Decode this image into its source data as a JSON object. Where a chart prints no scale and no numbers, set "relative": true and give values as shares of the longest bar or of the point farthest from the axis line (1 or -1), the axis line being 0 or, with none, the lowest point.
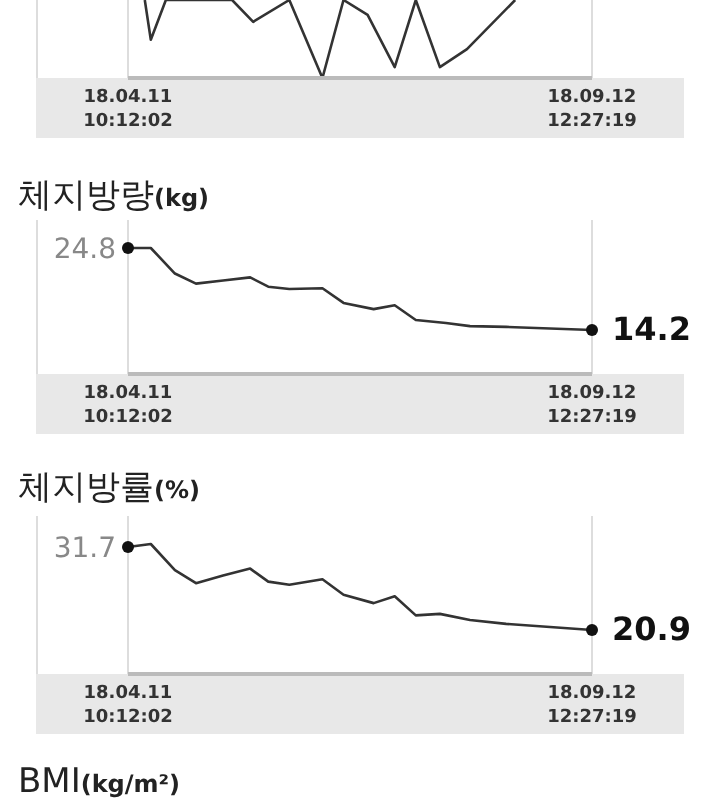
{
  "chart_data": [
    {
      "type": "line",
      "relative": true,
      "grid": "x",
      "line_style": "solid",
      "x": [
        "--04-17",
        "--04-19",
        "--04-24",
        "--05-16",
        "--05-23",
        "--06-04",
        "--06-15",
        "--06-22",
        "--06-30",
        "--07-09",
        "--07-16",
        "--07-24",
        "--08-02",
        "--08-18"
      ],
      "values": [
        1,
        0.49,
        1,
        1,
        0.72,
        1,
        0,
        1,
        0.81,
        0.14,
        1,
        0.14,
        0.37,
        1
      ],
      "xlim": [
        "--04-11T10:12",
        "--09-12T12:27"
      ],
      "xticks": [
        {
          "value": "--04-11T10:12",
          "label": "18.04.11\n10:12:02"
        },
        {
          "value": "--09-12T12:27",
          "label": "18.09.12\n12:27:19"
        }
      ]
    },
    {
      "type": "line",
      "title": "체지방량(kg)",
      "grid": "x",
      "line_style": "solid",
      "x": [
        "--04-11T10:12",
        "--04-19",
        "--04-27",
        "--05-04",
        "--05-13",
        "--05-22",
        "--05-28",
        "--06-04",
        "--06-15",
        "--06-22",
        "--07-02",
        "--07-09",
        "--07-16",
        "--07-26",
        "--08-03",
        "--08-15",
        "--09-12T12:27"
      ],
      "values": [
        24.8,
        24.8,
        21.5,
        20.2,
        20.6,
        21.0,
        19.8,
        19.5,
        19.6,
        17.7,
        16.9,
        17.4,
        15.5,
        15.1,
        14.7,
        14.6,
        14.2
      ],
      "value_labels": [
        "24.8",
        null,
        null,
        null,
        null,
        null,
        null,
        null,
        null,
        null,
        null,
        null,
        null,
        null,
        null,
        null,
        "14.2"
      ],
      "xlim": [
        "--04-11T10:12",
        "--09-12T12:27"
      ],
      "xticks": [
        {
          "value": "--04-11T10:12",
          "label": "18.04.11\n10:12:02"
        },
        {
          "value": "--09-12T12:27",
          "label": "18.09.12\n12:27:19"
        }
      ]
    },
    {
      "type": "line",
      "title": "체지방률(%)",
      "grid": "x",
      "line_style": "solid",
      "x": [
        "--04-11T10:12",
        "--04-19",
        "--04-27",
        "--05-04",
        "--05-13",
        "--05-22",
        "--05-28",
        "--06-04",
        "--06-15",
        "--06-22",
        "--07-02",
        "--07-09",
        "--07-16",
        "--07-24",
        "--08-03",
        "--08-15",
        "--09-12T12:27"
      ],
      "values": [
        31.7,
        32.1,
        28.7,
        27.0,
        28.0,
        28.9,
        27.2,
        26.8,
        27.5,
        25.5,
        24.4,
        25.3,
        22.8,
        23.0,
        22.2,
        21.7,
        20.9
      ],
      "value_labels": [
        "31.7",
        null,
        null,
        null,
        null,
        null,
        null,
        null,
        null,
        null,
        null,
        null,
        null,
        null,
        null,
        null,
        "20.9"
      ],
      "xlim": [
        "--04-11T10:12",
        "--09-12T12:27"
      ],
      "xticks": [
        {
          "value": "--04-11T10:12",
          "label": "18.04.11\n10:12:02"
        },
        {
          "value": "--09-12T12:27",
          "label": "18.09.12\n12:27:19"
        }
      ]
    },
    {
      "type": "other",
      "title": "BMI(kg/m²)"
    }
  ]
}
